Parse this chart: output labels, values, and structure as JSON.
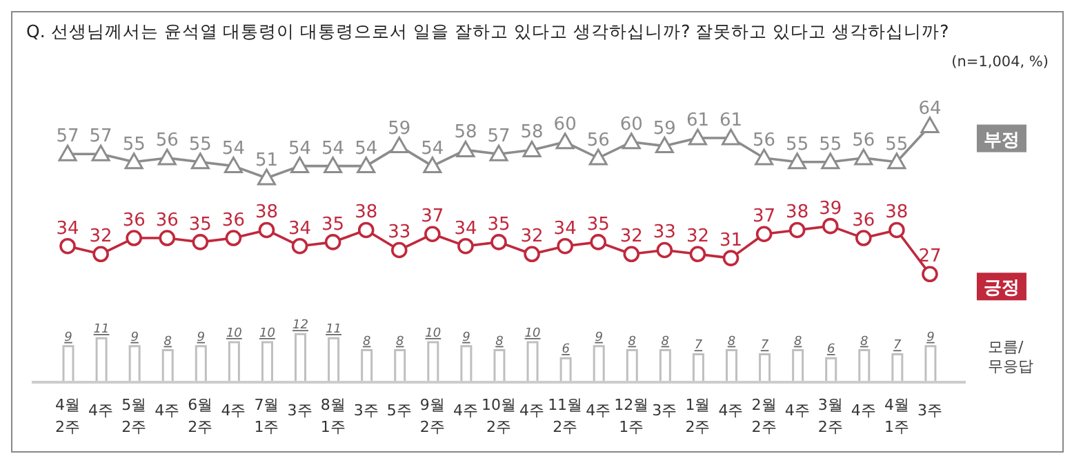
{
  "chart_data": {
    "type": "line",
    "title": "Q. 선생님께서는 윤석열 대통령이 대통령으로서 일을 잘하고 있다고 생각하십니까? 잘못하고 있다고 생각하십니까?",
    "subtitle": "(n=1,004,  %)",
    "categories": [
      "4월\n2주",
      "4주",
      "5월\n2주",
      "4주",
      "6월\n2주",
      "4주",
      "7월\n1주",
      "3주",
      "8월\n1주",
      "3주",
      "5주",
      "9월\n2주",
      "4주",
      "10월\n2주",
      "4주",
      "11월\n2주",
      "4주",
      "12월\n1주",
      "3주",
      "1월\n2주",
      "4주",
      "2월\n2주",
      "4주",
      "3월\n2주",
      "4주",
      "4월\n1주",
      "3주"
    ],
    "series": [
      {
        "name": "부정",
        "color": "#8c8c8c",
        "marker": "triangle",
        "values": [
          57,
          57,
          55,
          56,
          55,
          54,
          51,
          54,
          54,
          54,
          59,
          54,
          58,
          57,
          58,
          60,
          56,
          60,
          59,
          61,
          61,
          56,
          55,
          55,
          56,
          55,
          64
        ]
      },
      {
        "name": "긍정",
        "color": "#c0283c",
        "marker": "circle",
        "values": [
          34,
          32,
          36,
          36,
          35,
          36,
          38,
          34,
          35,
          38,
          33,
          37,
          34,
          35,
          32,
          34,
          35,
          32,
          33,
          32,
          31,
          37,
          38,
          39,
          36,
          38,
          27
        ]
      },
      {
        "name": "모름/\n무응답",
        "type": "bar",
        "color": "#bfbfbf",
        "values": [
          9,
          11,
          9,
          8,
          9,
          10,
          10,
          12,
          11,
          8,
          8,
          10,
          9,
          8,
          10,
          6,
          9,
          8,
          8,
          7,
          8,
          7,
          8,
          6,
          8,
          7,
          9
        ]
      }
    ],
    "tick_labels": "x",
    "grid": false,
    "legend": "right",
    "data_labels": true,
    "line_style": "solid"
  }
}
